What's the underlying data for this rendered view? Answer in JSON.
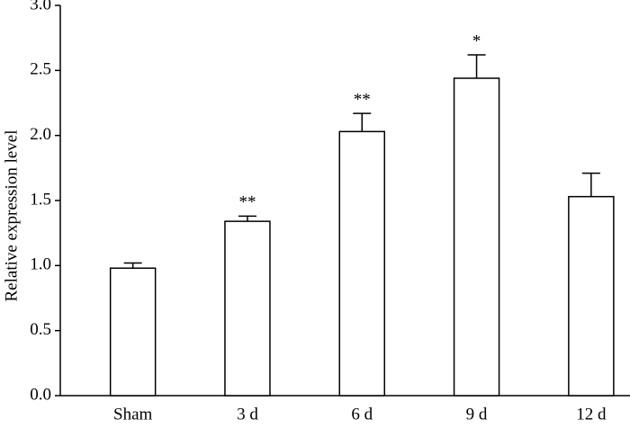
{
  "chart_data": {
    "type": "bar",
    "y_label": "Relative expression level",
    "categories": [
      "Sham",
      "3 d",
      "6 d",
      "9 d",
      "12 d"
    ],
    "values": [
      0.98,
      1.34,
      2.03,
      2.44,
      1.53
    ],
    "errors": [
      0.04,
      0.04,
      0.14,
      0.18,
      0.18
    ],
    "color": "#ffffff",
    "ylim": [
      0,
      3.0
    ],
    "yticks": [
      {
        "value": 0,
        "label": "0.0"
      },
      0.5,
      {
        "value": 1,
        "label": "1.0"
      },
      1.5,
      {
        "value": 2,
        "label": "2.0"
      },
      2.5,
      {
        "value": 3,
        "label": "3.0"
      }
    ],
    "grid": false,
    "annotations": [
      {
        "x": "3 d",
        "text": "**"
      },
      {
        "x": "6 d",
        "text": "**"
      },
      {
        "x": "9 d",
        "text": "*"
      }
    ]
  }
}
